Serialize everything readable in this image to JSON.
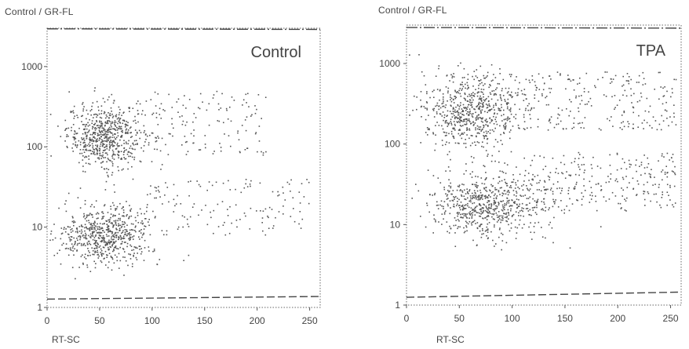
{
  "chart_data": [
    {
      "type": "scatter",
      "name": "control-panel",
      "corner_label": "Control / GR-FL",
      "inner_label": "Control",
      "xlabel": "RT-SC",
      "x_scale": "linear",
      "y_scale": "log",
      "xlim": [
        0,
        260
      ],
      "ylim": [
        1,
        3000
      ],
      "x_ticks": [
        "0",
        "50",
        "100",
        "150",
        "200",
        "250"
      ],
      "x_tick_values": [
        0,
        50,
        100,
        150,
        200,
        250
      ],
      "y_ticks": [
        "1",
        "10",
        "100",
        "1000"
      ],
      "y_tick_values": [
        1,
        10,
        100,
        1000
      ],
      "gate_lines": [
        {
          "y_start": 2950,
          "y_end": 2900
        },
        {
          "y_start": 1.27,
          "y_end": 1.37
        }
      ],
      "clusters": [
        {
          "label": "upper",
          "x_center": 55,
          "x_spread": 18,
          "y_center": 140,
          "y_spread_log": 0.2,
          "density": "dense"
        },
        {
          "label": "upper-tail",
          "x_range": [
            80,
            210
          ],
          "y_range": [
            80,
            500
          ],
          "density": "sparse"
        },
        {
          "label": "lower",
          "x_center": 55,
          "x_spread": 22,
          "y_center": 8,
          "y_spread_log": 0.18,
          "density": "dense"
        },
        {
          "label": "lower-tail",
          "x_range": [
            90,
            250
          ],
          "y_range": [
            8,
            40
          ],
          "density": "sparse"
        }
      ]
    },
    {
      "type": "scatter",
      "name": "tpa-panel",
      "corner_label": "Control / GR-FL",
      "inner_label": "TPA",
      "xlabel": "RT-SC",
      "x_scale": "linear",
      "y_scale": "log",
      "xlim": [
        0,
        260
      ],
      "ylim": [
        1,
        3000
      ],
      "x_ticks": [
        "0",
        "50",
        "100",
        "150",
        "200",
        "250"
      ],
      "x_tick_values": [
        0,
        50,
        100,
        150,
        200,
        250
      ],
      "y_ticks": [
        "1",
        "10",
        "100",
        "1000"
      ],
      "y_tick_values": [
        1,
        10,
        100,
        1000
      ],
      "gate_lines": [
        {
          "y_start": 2800,
          "y_end": 2750
        },
        {
          "y_start": 1.25,
          "y_end": 1.45
        }
      ],
      "clusters": [
        {
          "label": "upper",
          "x_center": 60,
          "x_spread": 22,
          "y_center": 250,
          "y_spread_log": 0.25,
          "density": "dense"
        },
        {
          "label": "upper-tail",
          "x_range": [
            90,
            255
          ],
          "y_range": [
            150,
            800
          ],
          "density": "medium"
        },
        {
          "label": "lower",
          "x_center": 75,
          "x_spread": 30,
          "y_center": 18,
          "y_spread_log": 0.2,
          "density": "dense"
        },
        {
          "label": "lower-tail",
          "x_range": [
            110,
            255
          ],
          "y_range": [
            15,
            80
          ],
          "density": "medium"
        }
      ]
    }
  ]
}
